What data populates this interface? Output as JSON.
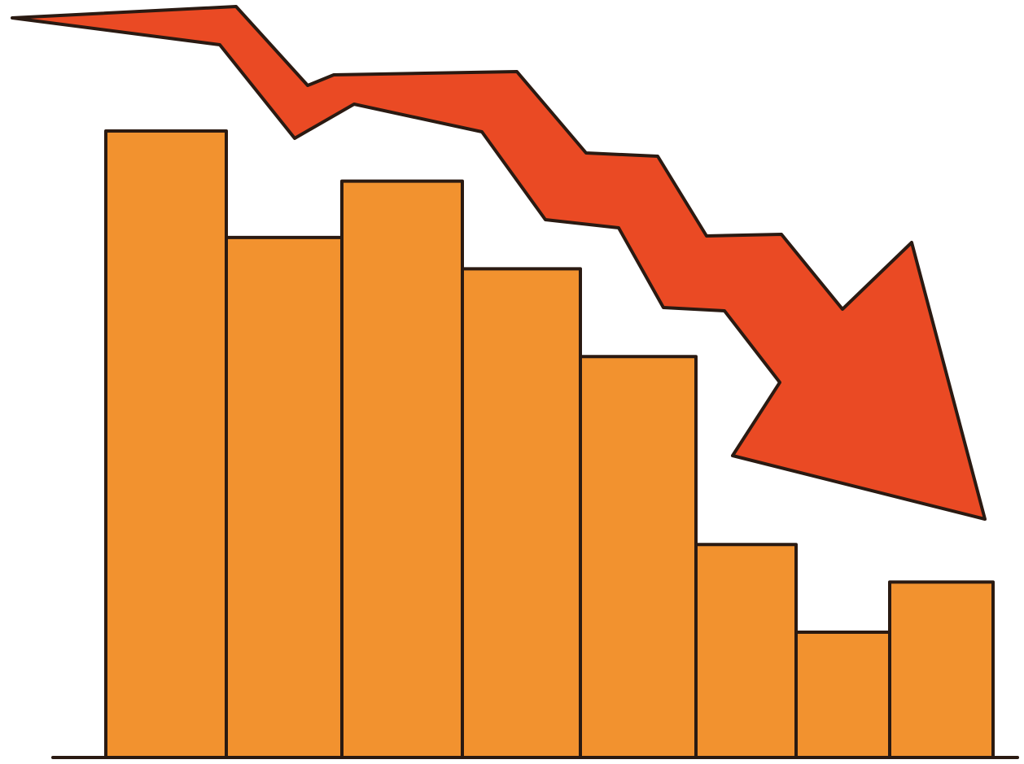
{
  "chart_data": {
    "type": "bar",
    "values": [
      100,
      83,
      92,
      78,
      64,
      34,
      20,
      28
    ],
    "color": "#f2922f"
  }
}
